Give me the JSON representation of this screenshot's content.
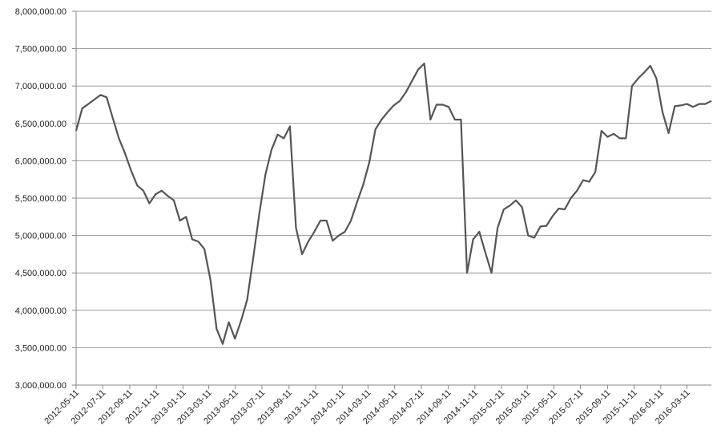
{
  "chart_data": {
    "type": "line",
    "x": [
      "2012-05-11",
      "2012-05-25",
      "2012-06-08",
      "2012-06-22",
      "2012-07-06",
      "2012-07-20",
      "2012-08-03",
      "2012-08-17",
      "2012-08-31",
      "2012-09-14",
      "2012-09-28",
      "2012-10-12",
      "2012-10-26",
      "2012-11-09",
      "2012-11-23",
      "2012-12-07",
      "2012-12-21",
      "2013-01-04",
      "2013-01-18",
      "2013-02-01",
      "2013-02-15",
      "2013-03-01",
      "2013-03-15",
      "2013-03-29",
      "2013-04-12",
      "2013-04-26",
      "2013-05-10",
      "2013-05-24",
      "2013-06-07",
      "2013-06-21",
      "2013-07-05",
      "2013-07-19",
      "2013-08-02",
      "2013-08-16",
      "2013-08-30",
      "2013-09-13",
      "2013-09-27",
      "2013-10-11",
      "2013-10-25",
      "2013-11-08",
      "2013-11-22",
      "2013-12-06",
      "2013-12-20",
      "2014-01-03",
      "2014-01-17",
      "2014-01-31",
      "2014-02-14",
      "2014-02-28",
      "2014-03-14",
      "2014-03-28",
      "2014-04-11",
      "2014-04-25",
      "2014-05-09",
      "2014-05-23",
      "2014-06-06",
      "2014-06-20",
      "2014-07-04",
      "2014-07-18",
      "2014-08-01",
      "2014-08-15",
      "2014-08-29",
      "2014-09-12",
      "2014-09-26",
      "2014-10-10",
      "2014-10-24",
      "2014-11-07",
      "2014-11-21",
      "2014-12-05",
      "2014-12-19",
      "2015-01-02",
      "2015-01-16",
      "2015-01-30",
      "2015-02-13",
      "2015-02-27",
      "2015-03-13",
      "2015-03-27",
      "2015-04-10",
      "2015-04-24",
      "2015-05-08",
      "2015-05-22",
      "2015-06-05",
      "2015-06-19",
      "2015-07-03",
      "2015-07-17",
      "2015-07-31",
      "2015-08-14",
      "2015-08-28",
      "2015-09-11",
      "2015-09-25",
      "2015-10-09",
      "2015-10-23",
      "2015-11-06",
      "2015-11-20",
      "2015-12-04",
      "2015-12-18",
      "2016-01-01",
      "2016-01-15",
      "2016-01-29",
      "2016-02-12",
      "2016-02-26",
      "2016-03-11",
      "2016-03-25",
      "2016-04-08",
      "2016-04-22",
      "2016-05-06"
    ],
    "series": [
      {
        "color": "#555555",
        "values": [
          6400000,
          6700000,
          6760000,
          6820000,
          6880000,
          6850000,
          6570000,
          6300000,
          6100000,
          5870000,
          5670000,
          5600000,
          5430000,
          5550000,
          5600000,
          5530000,
          5470000,
          5200000,
          5250000,
          4950000,
          4920000,
          4820000,
          4400000,
          3750000,
          3550000,
          3840000,
          3620000,
          3860000,
          4140000,
          4700000,
          5300000,
          5820000,
          6150000,
          6350000,
          6300000,
          6460000,
          5100000,
          4750000,
          4920000,
          5050000,
          5200000,
          5200000,
          4930000,
          5000000,
          5050000,
          5200000,
          5450000,
          5680000,
          5980000,
          6420000,
          6550000,
          6650000,
          6740000,
          6800000,
          6920000,
          7070000,
          7220000,
          7300000,
          6550000,
          6750000,
          6750000,
          6720000,
          6550000,
          6550000,
          4500000,
          4950000,
          5050000,
          4770000,
          4500000,
          5100000,
          5350000,
          5400000,
          5470000,
          5380000,
          5000000,
          4970000,
          5120000,
          5130000,
          5260000,
          5360000,
          5350000,
          5500000,
          5600000,
          5740000,
          5720000,
          5850000,
          6400000,
          6320000,
          6360000,
          6300000,
          6300000,
          7000000,
          7100000,
          7180000,
          7270000,
          7100000,
          6650000,
          6370000,
          6730000,
          6740000,
          6760000,
          6720000,
          6760000,
          6760000,
          6800000
        ]
      }
    ],
    "xlim": [
      "2012-05-11",
      "2016-05-06"
    ],
    "xticks": [
      "2012-05-11",
      "2012-07-11",
      "2012-09-11",
      "2012-11-11",
      "2013-01-11",
      "2013-03-11",
      "2013-05-11",
      "2013-07-11",
      "2013-09-11",
      "2013-11-11",
      "2014-01-11",
      "2014-03-11",
      "2014-05-11",
      "2014-07-11",
      "2014-09-11",
      "2014-11-11",
      "2015-01-11",
      "2015-03-11",
      "2015-05-11",
      "2015-07-11",
      "2015-09-11",
      "2015-11-11",
      "2016-01-11",
      "2016-03-11"
    ],
    "ylim": [
      3000000,
      8000000
    ],
    "yticks": [
      {
        "value": 3000000,
        "label": "3,000,000.00"
      },
      {
        "value": 3500000,
        "label": "3,500,000.00"
      },
      {
        "value": 4000000,
        "label": "4,000,000.00"
      },
      {
        "value": 4500000,
        "label": "4,500,000.00"
      },
      {
        "value": 5000000,
        "label": "5,000,000.00"
      },
      {
        "value": 5500000,
        "label": "5,500,000.00"
      },
      {
        "value": 6000000,
        "label": "6,000,000.00"
      },
      {
        "value": 6500000,
        "label": "6,500,000.00"
      },
      {
        "value": 7000000,
        "label": "7,000,000.00"
      },
      {
        "value": 7500000,
        "label": "7,500,000.00"
      },
      {
        "value": 8000000,
        "label": "8,000,000.00"
      }
    ],
    "grid": true
  }
}
